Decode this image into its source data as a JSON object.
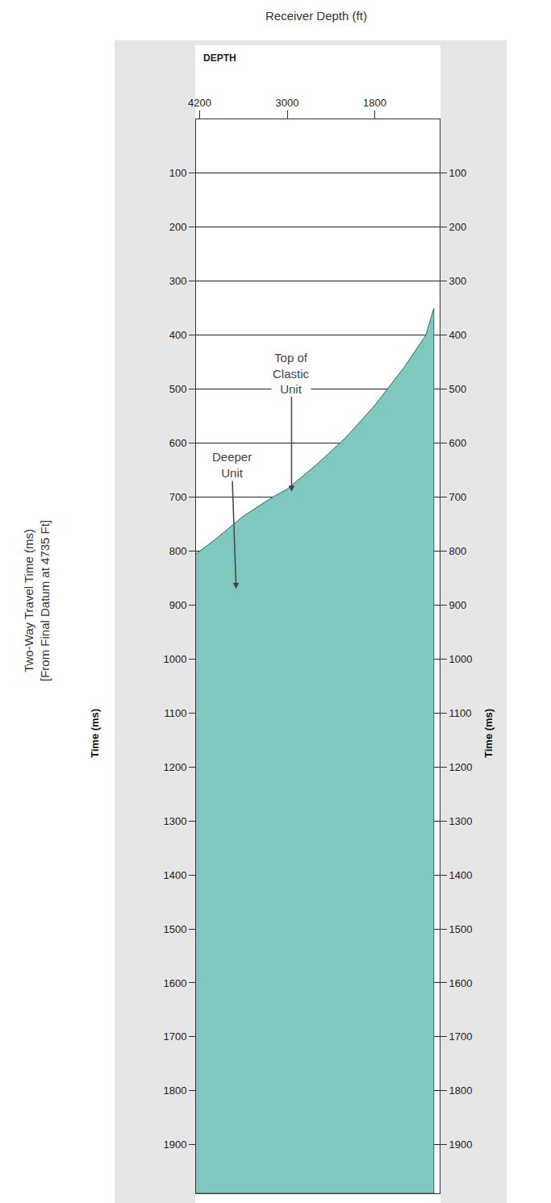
{
  "chart_data": {
    "type": "area",
    "title": "Receiver Depth (ft)",
    "header": "DEPTH",
    "y_label_outer": "Two-Way Travel Time (ms)",
    "y_label_outer_note": "[From Final Datum at 4735 Ft]",
    "y_label": "Time (ms)",
    "y2_label": "Time (ms)",
    "x": [
      4250,
      4000,
      3600,
      3200,
      3000,
      2600,
      2200,
      1800,
      1400,
      1100,
      990
    ],
    "values": [
      805,
      780,
      735,
      700,
      685,
      640,
      590,
      530,
      460,
      400,
      350
    ],
    "color": "#7fc8c0",
    "xlim": [
      4250,
      910
    ],
    "xticks": [
      4200,
      3000,
      1800
    ],
    "ylim": [
      1990,
      0
    ],
    "yticks": [
      100,
      200,
      300,
      400,
      500,
      600,
      700,
      800,
      900,
      1000,
      1100,
      1200,
      1300,
      1400,
      1500,
      1600,
      1700,
      1800,
      1900
    ],
    "y2lim": [
      1990,
      0
    ],
    "y2ticks": [
      100,
      200,
      300,
      400,
      500,
      600,
      700,
      800,
      900,
      1000,
      1100,
      1200,
      1300,
      1400,
      1500,
      1600,
      1700,
      1800,
      1900
    ],
    "grid": true,
    "annotations": [
      {
        "text": "Top of Clastic Unit",
        "x": 2940,
        "y": 690,
        "text_x": 2940,
        "text_y": 470
      },
      {
        "text": "Deeper Unit",
        "x": 3700,
        "y": 870,
        "text_x": 3760,
        "text_y": 640
      }
    ]
  }
}
